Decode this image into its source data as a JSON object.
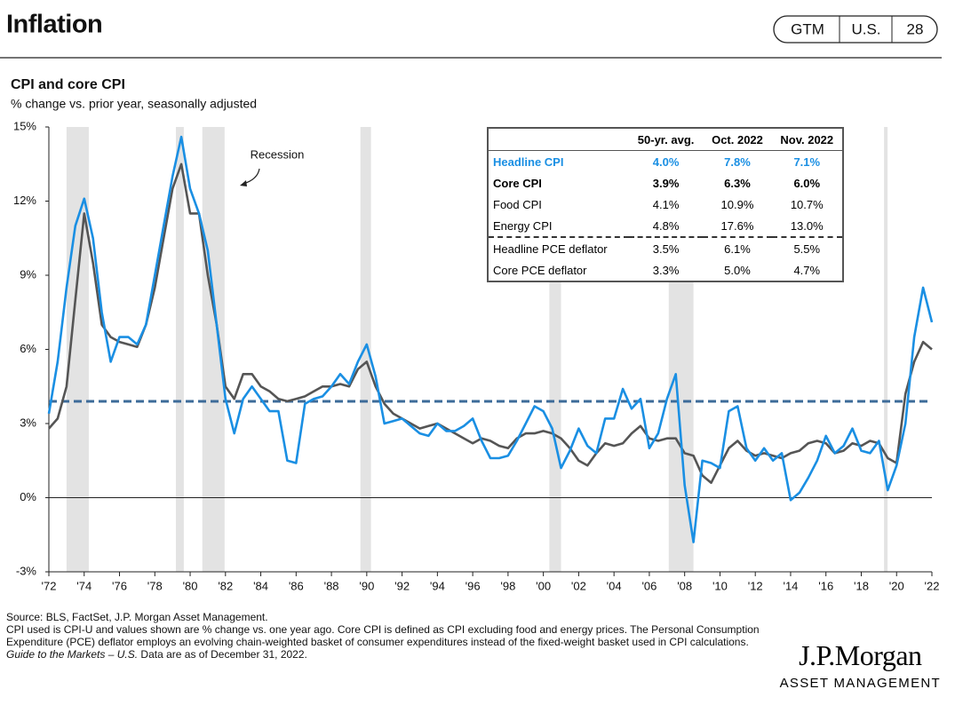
{
  "header": {
    "title": "Inflation",
    "badges": [
      "GTM",
      "U.S.",
      "28"
    ]
  },
  "chart_data": {
    "type": "line",
    "title": "CPI and core CPI",
    "subtitle": "% change vs. prior year, seasonally adjusted",
    "recession_label": "Recession",
    "recessions": [
      [
        1973.0,
        1974.26
      ],
      [
        1979.19,
        1979.64
      ],
      [
        1980.69,
        1981.95
      ],
      [
        1989.64,
        1990.24
      ],
      [
        2000.34,
        2001.0
      ],
      [
        2007.1,
        2008.5
      ],
      [
        2019.29,
        2019.49
      ]
    ],
    "average_line": 3.9,
    "xlim": [
      1972,
      2022
    ],
    "ylim": [
      -3,
      15
    ],
    "yticks": [
      {
        "value": 15,
        "label": "15%"
      },
      {
        "value": 12,
        "label": "12%"
      },
      {
        "value": 9,
        "label": "9%"
      },
      {
        "value": 6,
        "label": "6%"
      },
      {
        "value": 3,
        "label": "3%"
      },
      {
        "value": 0,
        "label": "0%"
      },
      {
        "value": -3,
        "label": "-3%"
      }
    ],
    "xticks": [
      {
        "value": 1972,
        "label": "'72"
      },
      {
        "value": 1974,
        "label": "'74"
      },
      {
        "value": 1976,
        "label": "'76"
      },
      {
        "value": 1978,
        "label": "'78"
      },
      {
        "value": 1980,
        "label": "'80"
      },
      {
        "value": 1982,
        "label": "'82"
      },
      {
        "value": 1984,
        "label": "'84"
      },
      {
        "value": 1986,
        "label": "'86"
      },
      {
        "value": 1988,
        "label": "'88"
      },
      {
        "value": 1990,
        "label": "'90"
      },
      {
        "value": 1992,
        "label": "'92"
      },
      {
        "value": 1994,
        "label": "'94"
      },
      {
        "value": 1996,
        "label": "'96"
      },
      {
        "value": 1998,
        "label": "'98"
      },
      {
        "value": 2000,
        "label": "'00"
      },
      {
        "value": 2002,
        "label": "'02"
      },
      {
        "value": 2004,
        "label": "'04"
      },
      {
        "value": 2006,
        "label": "'06"
      },
      {
        "value": 2008,
        "label": "'08"
      },
      {
        "value": 2010,
        "label": "'10"
      },
      {
        "value": 2012,
        "label": "'12"
      },
      {
        "value": 2014,
        "label": "'14"
      },
      {
        "value": 2016,
        "label": "'16"
      },
      {
        "value": 2018,
        "label": "'18"
      },
      {
        "value": 2020,
        "label": "'20"
      },
      {
        "value": 2022,
        "label": "'22"
      }
    ],
    "x": [
      1972,
      1972.5,
      1973,
      1973.5,
      1974,
      1974.5,
      1975,
      1975.5,
      1976,
      1976.5,
      1977,
      1977.5,
      1978,
      1978.5,
      1979,
      1979.5,
      1980,
      1980.5,
      1981,
      1981.5,
      1982,
      1982.5,
      1983,
      1983.5,
      1984,
      1984.5,
      1985,
      1985.5,
      1986,
      1986.5,
      1987,
      1987.5,
      1988,
      1988.5,
      1989,
      1989.5,
      1990,
      1990.5,
      1991,
      1991.5,
      1992,
      1992.5,
      1993,
      1993.5,
      1994,
      1994.5,
      1995,
      1995.5,
      1996,
      1996.5,
      1997,
      1997.5,
      1998,
      1998.5,
      1999,
      1999.5,
      2000,
      2000.5,
      2001,
      2001.5,
      2002,
      2002.5,
      2003,
      2003.5,
      2004,
      2004.5,
      2005,
      2005.5,
      2006,
      2006.5,
      2007,
      2007.5,
      2008,
      2008.5,
      2009,
      2009.5,
      2010,
      2010.5,
      2011,
      2011.5,
      2012,
      2012.5,
      2013,
      2013.5,
      2014,
      2014.5,
      2015,
      2015.5,
      2016,
      2016.5,
      2017,
      2017.5,
      2018,
      2018.5,
      2019,
      2019.5,
      2020,
      2020.5,
      2021,
      2021.5,
      2022
    ],
    "series": [
      {
        "name": "Headline CPI",
        "color": "#1a8fe3",
        "values": [
          3.4,
          5.5,
          8.5,
          11.0,
          12.1,
          10.5,
          7.5,
          5.5,
          6.5,
          6.5,
          6.2,
          7.0,
          9.0,
          11.0,
          13.0,
          14.6,
          12.5,
          11.5,
          10.0,
          7.0,
          4.0,
          2.6,
          4.0,
          4.5,
          4.0,
          3.5,
          3.5,
          1.5,
          1.4,
          3.8,
          4.0,
          4.1,
          4.5,
          5.0,
          4.6,
          5.5,
          6.2,
          4.9,
          3.0,
          3.1,
          3.2,
          2.9,
          2.6,
          2.5,
          3.0,
          2.7,
          2.7,
          2.9,
          3.2,
          2.3,
          1.6,
          1.6,
          1.7,
          2.3,
          3.0,
          3.7,
          3.5,
          2.8,
          1.2,
          1.9,
          2.8,
          2.1,
          1.8,
          3.2,
          3.2,
          4.4,
          3.6,
          4.0,
          2.0,
          2.6,
          4.0,
          5.0,
          0.5,
          -1.8,
          1.5,
          1.4,
          1.2,
          3.5,
          3.7,
          2.0,
          1.5,
          2.0,
          1.5,
          1.8,
          -0.1,
          0.2,
          0.8,
          1.5,
          2.5,
          1.8,
          2.1,
          2.8,
          1.9,
          1.8,
          2.3,
          0.3,
          1.3,
          3.0,
          6.5,
          8.5,
          7.1
        ]
      },
      {
        "name": "Core CPI",
        "color": "#555555",
        "values": [
          2.8,
          3.2,
          4.5,
          8.0,
          11.5,
          9.5,
          7.0,
          6.5,
          6.3,
          6.2,
          6.1,
          7.0,
          8.5,
          10.5,
          12.5,
          13.5,
          11.5,
          11.5,
          9.0,
          7.0,
          4.5,
          4.0,
          5.0,
          5.0,
          4.5,
          4.3,
          4.0,
          3.9,
          4.0,
          4.1,
          4.3,
          4.5,
          4.5,
          4.6,
          4.5,
          5.2,
          5.5,
          4.5,
          3.8,
          3.4,
          3.2,
          3.0,
          2.8,
          2.9,
          3.0,
          2.8,
          2.6,
          2.4,
          2.2,
          2.4,
          2.3,
          2.1,
          2.0,
          2.4,
          2.6,
          2.6,
          2.7,
          2.6,
          2.4,
          2.0,
          1.5,
          1.3,
          1.8,
          2.2,
          2.1,
          2.2,
          2.6,
          2.9,
          2.4,
          2.3,
          2.4,
          2.4,
          1.8,
          1.7,
          0.9,
          0.6,
          1.3,
          2.0,
          2.3,
          1.9,
          1.7,
          1.8,
          1.7,
          1.6,
          1.8,
          1.9,
          2.2,
          2.3,
          2.2,
          1.8,
          1.9,
          2.2,
          2.1,
          2.3,
          2.2,
          1.6,
          1.4,
          4.2,
          5.5,
          6.3,
          6.0
        ]
      }
    ]
  },
  "table": {
    "columns": [
      "50-yr. avg.",
      "Oct. 2022",
      "Nov. 2022"
    ],
    "rows": [
      {
        "label": "Headline CPI",
        "values": [
          "4.0%",
          "7.8%",
          "7.1%"
        ]
      },
      {
        "label": "Core CPI",
        "values": [
          "3.9%",
          "6.3%",
          "6.0%"
        ]
      },
      {
        "label": "Food CPI",
        "values": [
          "4.1%",
          "10.9%",
          "10.7%"
        ]
      },
      {
        "label": "Energy CPI",
        "values": [
          "4.8%",
          "17.6%",
          "13.0%"
        ]
      },
      {
        "label": "Headline PCE deflator",
        "values": [
          "3.5%",
          "6.1%",
          "5.5%"
        ]
      },
      {
        "label": "Core PCE deflator",
        "values": [
          "3.3%",
          "5.0%",
          "4.7%"
        ]
      }
    ]
  },
  "footer": {
    "source": "Source: BLS, FactSet, J.P. Morgan Asset Management.",
    "note": "CPI used is CPI-U and values shown are % change vs. one year ago. Core CPI is defined as CPI excluding food and energy prices. The Personal Consumption Expenditure (PCE) deflator employs an evolving chain-weighted basket of consumer expenditures instead of the fixed-weight basket used in CPI calculations.",
    "guide": "Guide to the Markets – U.S.",
    "date_note": " Data are as of December 31, 2022."
  },
  "logo": {
    "name": "J.P.Morgan",
    "tagline": "ASSET MANAGEMENT"
  }
}
